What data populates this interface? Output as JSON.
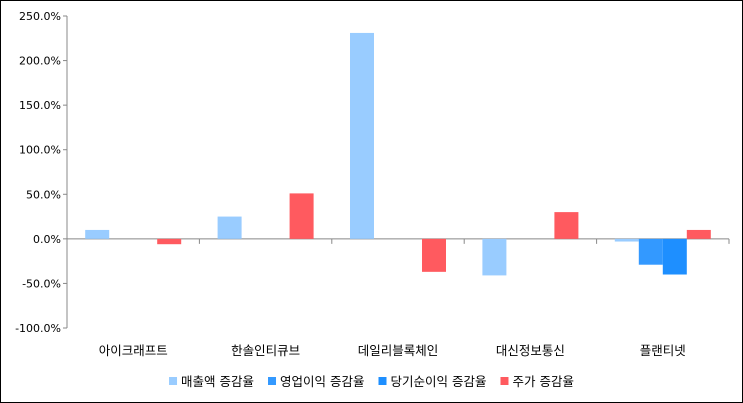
{
  "chart_data": {
    "type": "bar",
    "categories": [
      "아이크래프트",
      "한솔인티큐브",
      "데일리블록체인",
      "대신정보통신",
      "플랜티넷"
    ],
    "series": [
      {
        "name": "매출액 증감율",
        "color": "#99ccff",
        "values": [
          10,
          25,
          231,
          -41,
          -3
        ]
      },
      {
        "name": "영업이익 증감율",
        "color": "#3399ff",
        "values": [
          null,
          null,
          null,
          null,
          -29
        ]
      },
      {
        "name": "당기순이익 증감율",
        "color": "#1e8fff",
        "values": [
          null,
          null,
          null,
          null,
          -40
        ]
      },
      {
        "name": "주가 증감율",
        "color": "#ff5a5f",
        "values": [
          -6,
          51,
          -37,
          30,
          10
        ]
      }
    ],
    "ylim": [
      -100,
      250
    ],
    "yticks": [
      250,
      200,
      150,
      100,
      50,
      0,
      -50,
      -100
    ],
    "ytick_labels": [
      "250.0%",
      "200.0%",
      "150.0%",
      "100.0%",
      "50.0%",
      "0.0%",
      "-50.0%",
      "-100.0%"
    ],
    "grid": false,
    "legend_position": "bottom",
    "title": "",
    "xlabel": "",
    "ylabel": ""
  }
}
